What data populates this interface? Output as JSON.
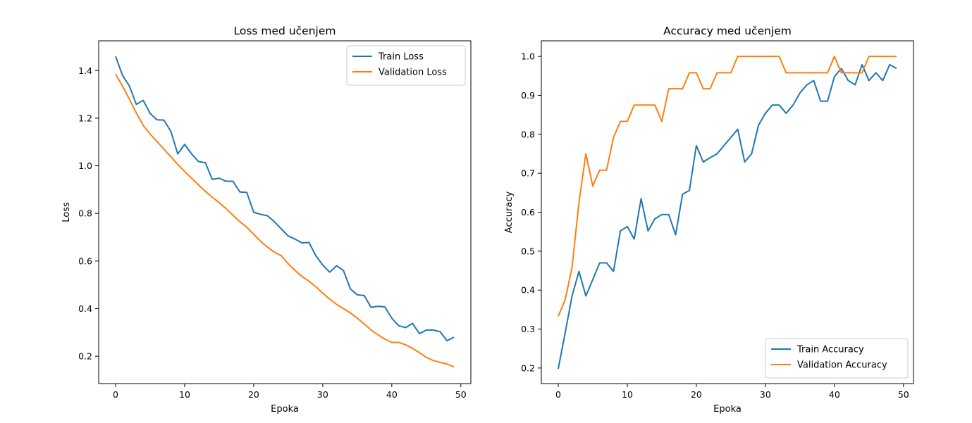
{
  "colors": {
    "train": "#1f77b4",
    "validation": "#ff7f0e",
    "axes": "#000000",
    "legend_border": "#cccccc"
  },
  "chart_data": [
    {
      "type": "line",
      "title": "Loss med učenjem",
      "xlabel": "Epoka",
      "ylabel": "Loss",
      "xlim": [
        -2.45,
        51.45
      ],
      "ylim": [
        0.085,
        1.525
      ],
      "xticks": [
        0,
        10,
        20,
        30,
        40,
        50
      ],
      "yticks": [
        0.2,
        0.4,
        0.6,
        0.8,
        1.0,
        1.2,
        1.4
      ],
      "ytick_labels": [
        "0.2",
        "0.4",
        "0.6",
        "0.8",
        "1.0",
        "1.2",
        "1.4"
      ],
      "legend_position": "top-right",
      "grid": false,
      "x": [
        0,
        1,
        2,
        3,
        4,
        5,
        6,
        7,
        8,
        9,
        10,
        11,
        12,
        13,
        14,
        15,
        16,
        17,
        18,
        19,
        20,
        21,
        22,
        23,
        24,
        25,
        26,
        27,
        28,
        29,
        30,
        31,
        32,
        33,
        34,
        35,
        36,
        37,
        38,
        39,
        40,
        41,
        42,
        43,
        44,
        45,
        46,
        47,
        48,
        49
      ],
      "series": [
        {
          "name": "Train Loss",
          "color": "#1f77b4",
          "values": [
            1.46,
            1.38,
            1.335,
            1.258,
            1.275,
            1.22,
            1.193,
            1.192,
            1.145,
            1.05,
            1.09,
            1.05,
            1.018,
            1.013,
            0.943,
            0.948,
            0.935,
            0.935,
            0.89,
            0.888,
            0.805,
            0.796,
            0.79,
            0.765,
            0.735,
            0.705,
            0.692,
            0.676,
            0.678,
            0.622,
            0.583,
            0.553,
            0.58,
            0.56,
            0.483,
            0.458,
            0.455,
            0.405,
            0.41,
            0.407,
            0.36,
            0.328,
            0.32,
            0.338,
            0.295,
            0.31,
            0.31,
            0.303,
            0.265,
            0.28
          ]
        },
        {
          "name": "Validation Loss",
          "color": "#ff7f0e",
          "values": [
            1.385,
            1.335,
            1.28,
            1.222,
            1.17,
            1.133,
            1.102,
            1.07,
            1.038,
            1.006,
            0.976,
            0.948,
            0.92,
            0.893,
            0.868,
            0.845,
            0.82,
            0.792,
            0.765,
            0.742,
            0.712,
            0.683,
            0.658,
            0.637,
            0.622,
            0.588,
            0.56,
            0.535,
            0.515,
            0.492,
            0.465,
            0.44,
            0.418,
            0.4,
            0.382,
            0.36,
            0.336,
            0.31,
            0.29,
            0.272,
            0.258,
            0.258,
            0.248,
            0.233,
            0.215,
            0.195,
            0.182,
            0.174,
            0.167,
            0.155
          ]
        }
      ]
    },
    {
      "type": "line",
      "title": "Accuracy med učenjem",
      "xlabel": "Epoka",
      "ylabel": "Accuracy",
      "xlim": [
        -2.45,
        51.45
      ],
      "ylim": [
        0.16,
        1.04
      ],
      "xticks": [
        0,
        10,
        20,
        30,
        40,
        50
      ],
      "yticks": [
        0.2,
        0.3,
        0.4,
        0.5,
        0.6,
        0.7,
        0.8,
        0.9,
        1.0
      ],
      "ytick_labels": [
        "0.2",
        "0.3",
        "0.4",
        "0.5",
        "0.6",
        "0.7",
        "0.8",
        "0.9",
        "1.0"
      ],
      "legend_position": "lower-right",
      "grid": false,
      "x": [
        0,
        1,
        2,
        3,
        4,
        5,
        6,
        7,
        8,
        9,
        10,
        11,
        12,
        13,
        14,
        15,
        16,
        17,
        18,
        19,
        20,
        21,
        22,
        23,
        24,
        25,
        26,
        27,
        28,
        29,
        30,
        31,
        32,
        33,
        34,
        35,
        36,
        37,
        38,
        39,
        40,
        41,
        42,
        43,
        44,
        45,
        46,
        47,
        48,
        49
      ],
      "series": [
        {
          "name": "Train Accuracy",
          "color": "#1f77b4",
          "values": [
            0.198,
            0.29,
            0.385,
            0.448,
            0.385,
            0.427,
            0.47,
            0.47,
            0.448,
            0.552,
            0.563,
            0.531,
            0.635,
            0.552,
            0.583,
            0.594,
            0.594,
            0.542,
            0.646,
            0.656,
            0.771,
            0.729,
            0.74,
            0.75,
            0.771,
            0.792,
            0.813,
            0.729,
            0.75,
            0.823,
            0.854,
            0.875,
            0.875,
            0.854,
            0.875,
            0.906,
            0.927,
            0.938,
            0.885,
            0.885,
            0.948,
            0.969,
            0.938,
            0.927,
            0.979,
            0.938,
            0.958,
            0.938,
            0.979,
            0.969
          ]
        },
        {
          "name": "Validation Accuracy",
          "color": "#ff7f0e",
          "values": [
            0.333,
            0.375,
            0.458,
            0.625,
            0.75,
            0.667,
            0.708,
            0.708,
            0.792,
            0.833,
            0.833,
            0.875,
            0.875,
            0.875,
            0.875,
            0.833,
            0.917,
            0.917,
            0.917,
            0.958,
            0.958,
            0.917,
            0.917,
            0.958,
            0.958,
            0.958,
            1.0,
            1.0,
            1.0,
            1.0,
            1.0,
            1.0,
            1.0,
            0.958,
            0.958,
            0.958,
            0.958,
            0.958,
            0.958,
            0.958,
            1.0,
            0.958,
            0.958,
            0.958,
            0.958,
            1.0,
            1.0,
            1.0,
            1.0,
            1.0
          ]
        }
      ]
    }
  ]
}
